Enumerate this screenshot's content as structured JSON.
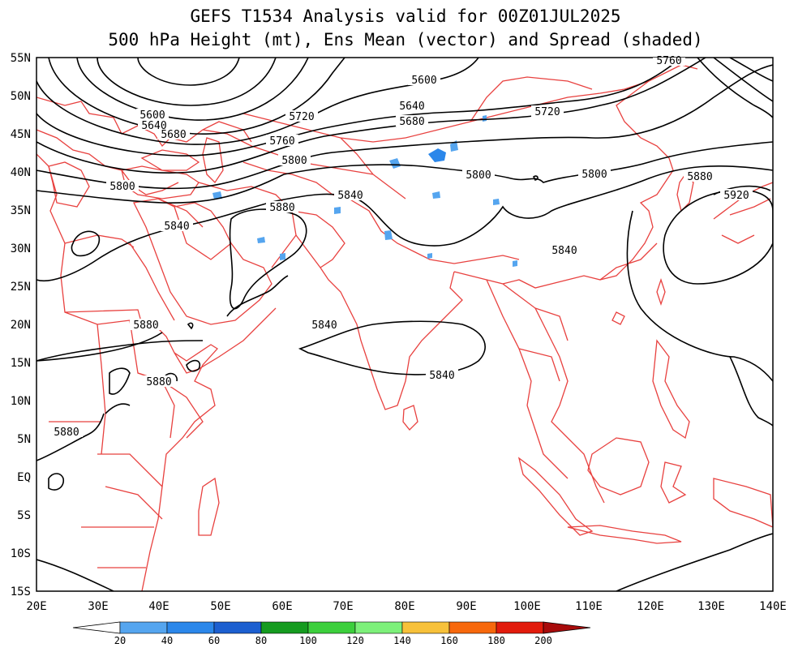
{
  "title": {
    "line1": "GEFS T1534 Analysis valid for 00Z01JUL2025",
    "line2": "500 hPa Height (mt), Ens Mean (vector) and Spread (shaded)"
  },
  "axes": {
    "lon_labels": [
      "20E",
      "30E",
      "40E",
      "50E",
      "60E",
      "70E",
      "80E",
      "90E",
      "100E",
      "110E",
      "120E",
      "130E",
      "140E"
    ],
    "lat_labels": [
      "55N",
      "50N",
      "45N",
      "40N",
      "35N",
      "30N",
      "25N",
      "20N",
      "15N",
      "10N",
      "5N",
      "EQ",
      "5S",
      "10S",
      "15S"
    ]
  },
  "contour_labels": [
    {
      "text": "5600"
    },
    {
      "text": "5640"
    },
    {
      "text": "5680"
    },
    {
      "text": "5720"
    },
    {
      "text": "5760"
    },
    {
      "text": "5800"
    },
    {
      "text": "5840"
    },
    {
      "text": "5880"
    },
    {
      "text": "5920"
    },
    {
      "text": "5760"
    },
    {
      "text": "5720"
    },
    {
      "text": "5680"
    },
    {
      "text": "5640"
    },
    {
      "text": "5600"
    },
    {
      "text": "5800"
    },
    {
      "text": "5800"
    },
    {
      "text": "5840"
    },
    {
      "text": "5880"
    },
    {
      "text": "5840"
    },
    {
      "text": "5800"
    },
    {
      "text": "5840"
    },
    {
      "text": "5840"
    },
    {
      "text": "5880"
    },
    {
      "text": "5880"
    },
    {
      "text": "5880"
    },
    {
      "text": "5880"
    },
    {
      "text": "5840"
    }
  ],
  "colorbar": {
    "labels": [
      "20",
      "40",
      "60",
      "80",
      "100",
      "120",
      "140",
      "160",
      "180",
      "200"
    ],
    "colors": [
      "#ffffff",
      "#55a5ef",
      "#2b87ea",
      "#1c5fd0",
      "#159b1f",
      "#3ccf3c",
      "#7df07a",
      "#f7c13a",
      "#f7680c",
      "#e21b0c",
      "#a80b0b"
    ]
  },
  "colors": {
    "coastline": "#e8413f",
    "contour": "#000000",
    "spread_low": "#55a5ef",
    "spread_mid": "#2b87ea"
  }
}
